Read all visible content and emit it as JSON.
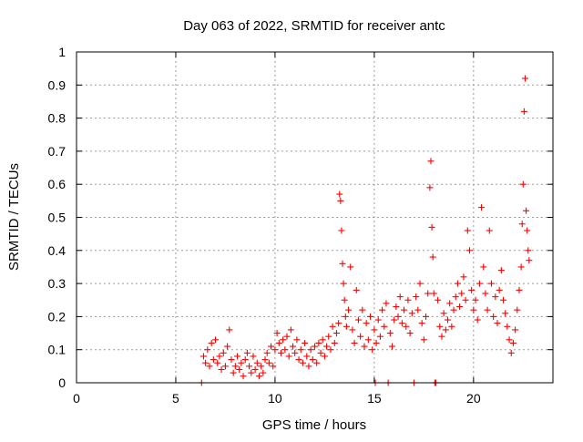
{
  "chart_data": {
    "type": "scatter",
    "title": "Day 063 of 2022, SRMTID for receiver antc",
    "xlabel": "GPS time / hours",
    "ylabel": "SRMTID / TECUs",
    "xlim": [
      0,
      24
    ],
    "ylim": [
      0,
      1
    ],
    "x_ticks": [
      0,
      5,
      10,
      15,
      20
    ],
    "x_tick_labels": [
      "0",
      "5",
      "10",
      "15",
      "20"
    ],
    "y_ticks": [
      0,
      0.1,
      0.2,
      0.3,
      0.4,
      0.5,
      0.6,
      0.7,
      0.8,
      0.9,
      1
    ],
    "y_tick_labels": [
      "0",
      "0.1",
      "0.2",
      "0.3",
      "0.4",
      "0.5",
      "0.6",
      "0.7",
      "0.8",
      "0.9",
      "1"
    ],
    "grid": true,
    "marker": "+",
    "color": "#ff0000",
    "series": [
      {
        "name": "SRMTID",
        "points": [
          [
            6.3,
            0.0
          ],
          [
            6.4,
            0.08
          ],
          [
            6.5,
            0.06
          ],
          [
            6.6,
            0.1
          ],
          [
            6.7,
            0.05
          ],
          [
            6.8,
            0.12
          ],
          [
            6.9,
            0.07
          ],
          [
            7.0,
            0.13
          ],
          [
            7.1,
            0.06
          ],
          [
            7.2,
            0.08
          ],
          [
            7.3,
            0.04
          ],
          [
            7.4,
            0.09
          ],
          [
            7.5,
            0.05
          ],
          [
            7.6,
            0.11
          ],
          [
            7.7,
            0.16
          ],
          [
            7.8,
            0.07
          ],
          [
            7.9,
            0.03
          ],
          [
            8.0,
            0.05
          ],
          [
            8.1,
            0.08
          ],
          [
            8.2,
            0.04
          ],
          [
            8.3,
            0.06
          ],
          [
            8.4,
            0.02
          ],
          [
            8.5,
            0.07
          ],
          [
            8.6,
            0.09
          ],
          [
            8.7,
            0.05
          ],
          [
            8.8,
            0.03
          ],
          [
            8.9,
            0.08
          ],
          [
            9.0,
            0.04
          ],
          [
            9.1,
            0.06
          ],
          [
            9.2,
            0.02
          ],
          [
            9.3,
            0.05
          ],
          [
            9.4,
            0.03
          ],
          [
            9.5,
            0.07
          ],
          [
            9.6,
            0.09
          ],
          [
            9.7,
            0.06
          ],
          [
            9.8,
            0.11
          ],
          [
            9.9,
            0.05
          ],
          [
            10.0,
            0.1
          ],
          [
            10.1,
            0.15
          ],
          [
            10.2,
            0.12
          ],
          [
            10.3,
            0.09
          ],
          [
            10.4,
            0.13
          ],
          [
            10.5,
            0.1
          ],
          [
            10.6,
            0.14
          ],
          [
            10.7,
            0.08
          ],
          [
            10.8,
            0.16
          ],
          [
            10.9,
            0.11
          ],
          [
            11.0,
            0.09
          ],
          [
            11.1,
            0.13
          ],
          [
            11.2,
            0.07
          ],
          [
            11.3,
            0.1
          ],
          [
            11.4,
            0.06
          ],
          [
            11.5,
            0.12
          ],
          [
            11.6,
            0.08
          ],
          [
            11.7,
            0.05
          ],
          [
            11.8,
            0.1
          ],
          [
            11.9,
            0.07
          ],
          [
            12.0,
            0.11
          ],
          [
            12.1,
            0.06
          ],
          [
            12.2,
            0.12
          ],
          [
            12.3,
            0.09
          ],
          [
            12.4,
            0.13
          ],
          [
            12.5,
            0.08
          ],
          [
            12.6,
            0.11
          ],
          [
            12.7,
            0.14
          ],
          [
            12.8,
            0.1
          ],
          [
            12.9,
            0.17
          ],
          [
            13.0,
            0.12
          ],
          [
            13.1,
            0.15
          ],
          [
            13.2,
            0.18
          ],
          [
            13.25,
            0.57
          ],
          [
            13.3,
            0.55
          ],
          [
            13.35,
            0.46
          ],
          [
            13.4,
            0.36
          ],
          [
            13.45,
            0.3
          ],
          [
            13.5,
            0.25
          ],
          [
            13.55,
            0.2
          ],
          [
            13.6,
            0.17
          ],
          [
            13.7,
            0.22
          ],
          [
            13.8,
            0.35
          ],
          [
            13.9,
            0.16
          ],
          [
            14.0,
            0.12
          ],
          [
            14.1,
            0.28
          ],
          [
            14.2,
            0.19
          ],
          [
            14.3,
            0.14
          ],
          [
            14.4,
            0.22
          ],
          [
            14.5,
            0.11
          ],
          [
            14.6,
            0.18
          ],
          [
            14.7,
            0.13
          ],
          [
            14.8,
            0.2
          ],
          [
            14.9,
            0.1
          ],
          [
            15.0,
            0.16
          ],
          [
            15.05,
            0.0
          ],
          [
            15.1,
            0.12
          ],
          [
            15.2,
            0.19
          ],
          [
            15.3,
            0.14
          ],
          [
            15.4,
            0.22
          ],
          [
            15.5,
            0.17
          ],
          [
            15.6,
            0.24
          ],
          [
            15.7,
            0.0
          ],
          [
            15.8,
            0.15
          ],
          [
            15.9,
            0.11
          ],
          [
            16.0,
            0.19
          ],
          [
            16.1,
            0.23
          ],
          [
            16.2,
            0.2
          ],
          [
            16.3,
            0.26
          ],
          [
            16.4,
            0.18
          ],
          [
            16.5,
            0.22
          ],
          [
            16.6,
            0.17
          ],
          [
            16.7,
            0.25
          ],
          [
            16.8,
            0.15
          ],
          [
            16.9,
            0.21
          ],
          [
            17.0,
            0.0
          ],
          [
            17.1,
            0.26
          ],
          [
            17.2,
            0.22
          ],
          [
            17.3,
            0.3
          ],
          [
            17.4,
            0.18
          ],
          [
            17.5,
            0.13
          ],
          [
            17.6,
            0.2
          ],
          [
            17.7,
            0.27
          ],
          [
            17.8,
            0.59
          ],
          [
            17.85,
            0.67
          ],
          [
            17.9,
            0.47
          ],
          [
            17.95,
            0.38
          ],
          [
            18.0,
            0.27
          ],
          [
            18.05,
            0.0
          ],
          [
            18.1,
            0.0
          ],
          [
            18.2,
            0.25
          ],
          [
            18.3,
            0.17
          ],
          [
            18.4,
            0.14
          ],
          [
            18.5,
            0.21
          ],
          [
            18.6,
            0.16
          ],
          [
            18.7,
            0.19
          ],
          [
            18.8,
            0.24
          ],
          [
            18.9,
            0.17
          ],
          [
            19.0,
            0.22
          ],
          [
            19.1,
            0.26
          ],
          [
            19.2,
            0.3
          ],
          [
            19.3,
            0.23
          ],
          [
            19.4,
            0.27
          ],
          [
            19.5,
            0.32
          ],
          [
            19.6,
            0.25
          ],
          [
            19.7,
            0.46
          ],
          [
            19.8,
            0.4
          ],
          [
            19.9,
            0.28
          ],
          [
            20.0,
            0.22
          ],
          [
            20.1,
            0.25
          ],
          [
            20.2,
            0.19
          ],
          [
            20.3,
            0.3
          ],
          [
            20.4,
            0.53
          ],
          [
            20.5,
            0.35
          ],
          [
            20.6,
            0.27
          ],
          [
            20.7,
            0.22
          ],
          [
            20.8,
            0.46
          ],
          [
            20.9,
            0.3
          ],
          [
            21.0,
            0.2
          ],
          [
            21.1,
            0.26
          ],
          [
            21.2,
            0.18
          ],
          [
            21.3,
            0.28
          ],
          [
            21.4,
            0.34
          ],
          [
            21.5,
            0.25
          ],
          [
            21.6,
            0.21
          ],
          [
            21.7,
            0.17
          ],
          [
            21.8,
            0.13
          ],
          [
            21.9,
            0.09
          ],
          [
            22.0,
            0.12
          ],
          [
            22.1,
            0.16
          ],
          [
            22.2,
            0.22
          ],
          [
            22.3,
            0.28
          ],
          [
            22.4,
            0.35
          ],
          [
            22.45,
            0.48
          ],
          [
            22.5,
            0.6
          ],
          [
            22.55,
            0.82
          ],
          [
            22.6,
            0.92
          ],
          [
            22.65,
            0.52
          ],
          [
            22.7,
            0.46
          ],
          [
            22.75,
            0.4
          ],
          [
            22.8,
            0.37
          ]
        ]
      }
    ]
  }
}
